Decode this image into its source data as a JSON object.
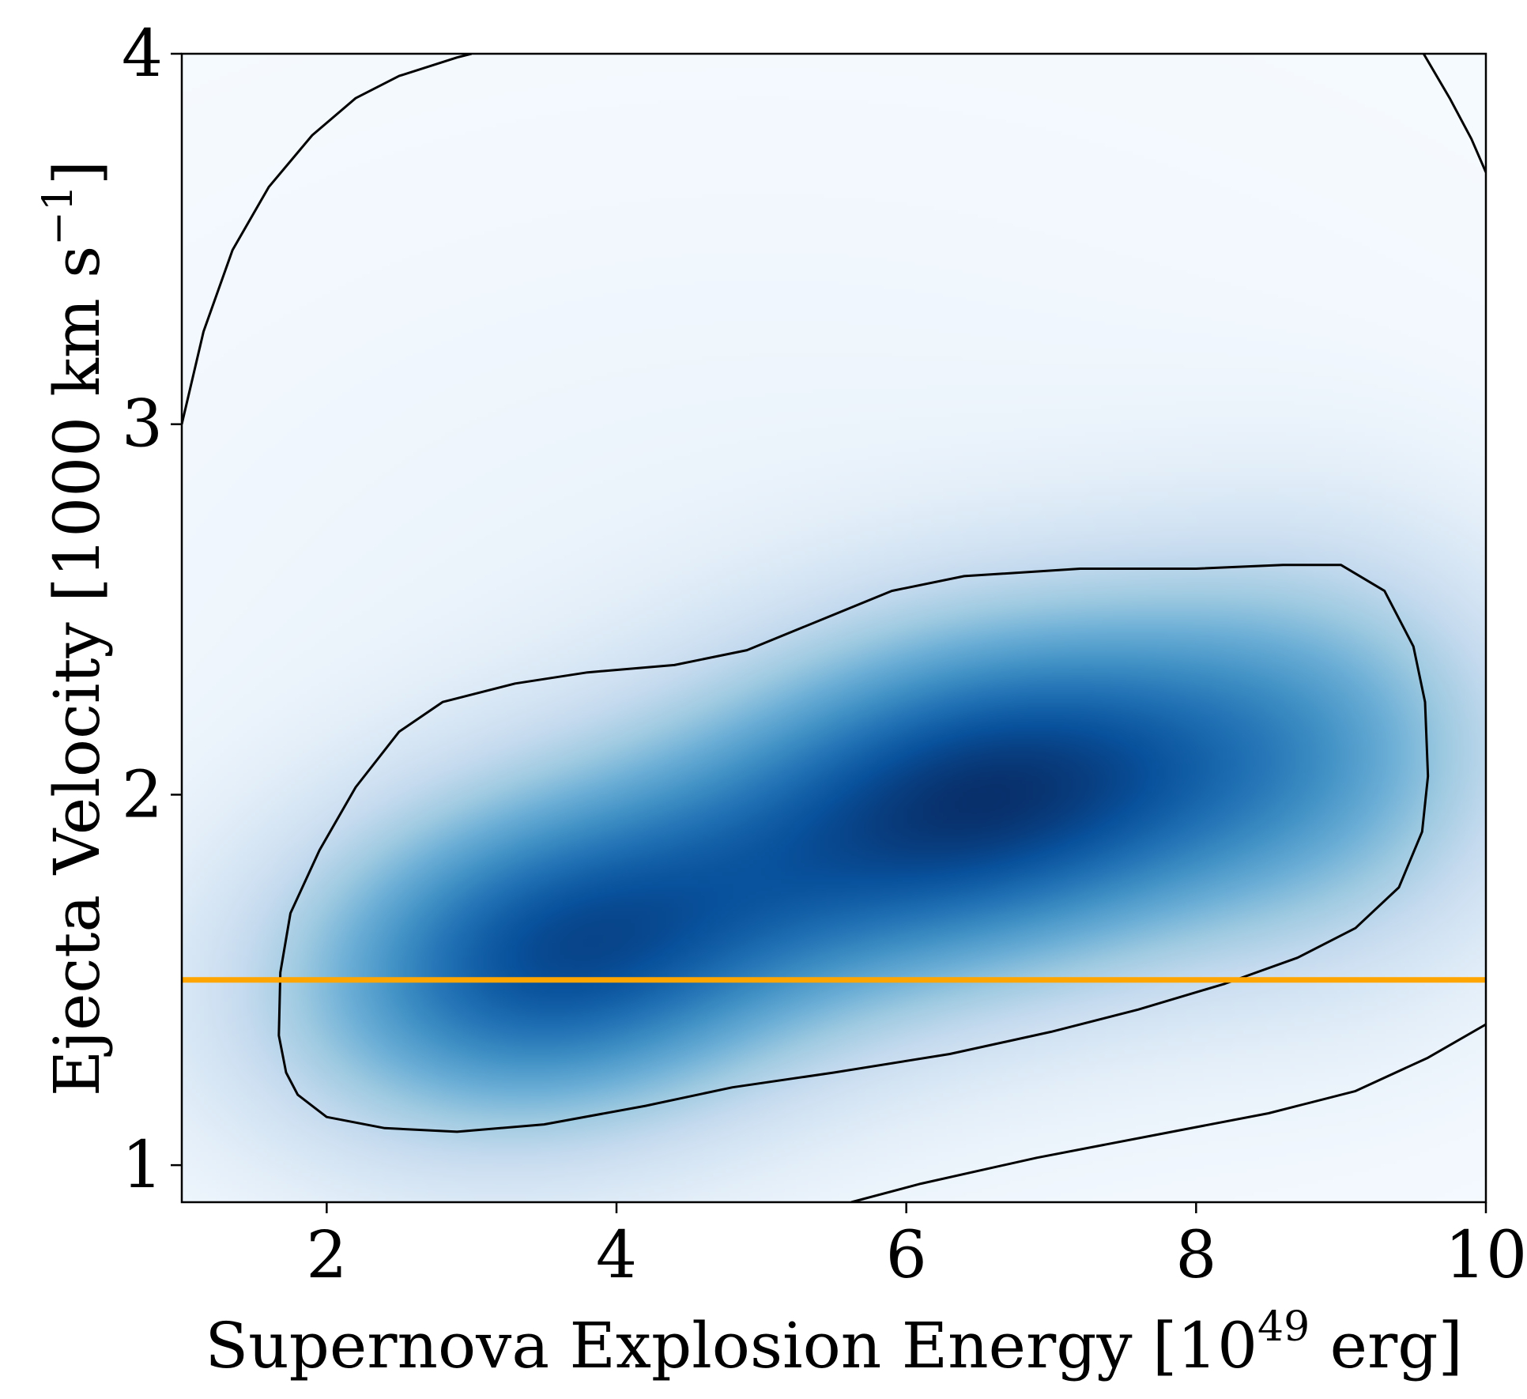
{
  "chart_data": {
    "type": "heatmap",
    "subtype": "2d-kde-density-with-contours",
    "xlabel": {
      "text": "Supernova Explosion Energy [10",
      "sup": "49",
      "suffix": " erg]"
    },
    "ylabel": {
      "text": "Ejecta Velocity [1000 km s",
      "sup": "−1",
      "suffix": "]"
    },
    "xlim": [
      1,
      10
    ],
    "ylim": [
      0.9,
      4
    ],
    "x_ticks": [
      2,
      4,
      6,
      8,
      10
    ],
    "x_tick_labels": [
      "2",
      "4",
      "6",
      "8",
      "10"
    ],
    "y_ticks": [
      1,
      2,
      3,
      4
    ],
    "y_tick_labels": [
      "1",
      "2",
      "3",
      "4"
    ],
    "colormap": {
      "name": "Blues",
      "low": "#f7fbff",
      "high": "#08306b"
    },
    "density_components": [
      {
        "mean": [
          3.5,
          1.55
        ],
        "sigma": [
          1.3,
          0.33
        ],
        "rho": 0.15,
        "weight": 1.0
      },
      {
        "mean": [
          6.6,
          2.0
        ],
        "sigma": [
          1.5,
          0.35
        ],
        "rho": 0.2,
        "weight": 1.15
      },
      {
        "mean": [
          9.0,
          2.1
        ],
        "sigma": [
          1.0,
          0.4
        ],
        "rho": 0.0,
        "weight": 0.4
      },
      {
        "mean": [
          5.0,
          2.2
        ],
        "sigma": [
          4.0,
          1.1
        ],
        "rho": 0.0,
        "weight": 0.08
      }
    ],
    "contours": [
      {
        "name": "inner-contour",
        "closed": true,
        "color": "#000000",
        "points": [
          [
            1.67,
            1.35
          ],
          [
            1.72,
            1.25
          ],
          [
            1.8,
            1.19
          ],
          [
            2.0,
            1.13
          ],
          [
            2.4,
            1.1
          ],
          [
            2.9,
            1.09
          ],
          [
            3.5,
            1.11
          ],
          [
            4.2,
            1.16
          ],
          [
            4.8,
            1.21
          ],
          [
            5.5,
            1.25
          ],
          [
            6.3,
            1.3
          ],
          [
            7.0,
            1.36
          ],
          [
            7.6,
            1.42
          ],
          [
            8.2,
            1.49
          ],
          [
            8.7,
            1.56
          ],
          [
            9.1,
            1.64
          ],
          [
            9.4,
            1.75
          ],
          [
            9.56,
            1.9
          ],
          [
            9.6,
            2.05
          ],
          [
            9.58,
            2.25
          ],
          [
            9.5,
            2.4
          ],
          [
            9.3,
            2.55
          ],
          [
            9.0,
            2.62
          ],
          [
            8.6,
            2.62
          ],
          [
            8.0,
            2.61
          ],
          [
            7.2,
            2.61
          ],
          [
            6.4,
            2.59
          ],
          [
            5.9,
            2.55
          ],
          [
            5.4,
            2.47
          ],
          [
            4.9,
            2.39
          ],
          [
            4.4,
            2.35
          ],
          [
            3.8,
            2.33
          ],
          [
            3.3,
            2.3
          ],
          [
            2.8,
            2.25
          ],
          [
            2.5,
            2.17
          ],
          [
            2.2,
            2.02
          ],
          [
            1.95,
            1.85
          ],
          [
            1.75,
            1.68
          ],
          [
            1.68,
            1.52
          ]
        ]
      },
      {
        "name": "outer-contour-top-left",
        "closed": false,
        "color": "#000000",
        "points": [
          [
            1.0,
            3.0
          ],
          [
            1.15,
            3.25
          ],
          [
            1.35,
            3.47
          ],
          [
            1.6,
            3.64
          ],
          [
            1.9,
            3.78
          ],
          [
            2.2,
            3.88
          ],
          [
            2.5,
            3.94
          ],
          [
            2.9,
            3.99
          ],
          [
            3.0,
            4.0
          ]
        ]
      },
      {
        "name": "outer-contour-top-right",
        "closed": false,
        "color": "#000000",
        "points": [
          [
            9.57,
            4.0
          ],
          [
            9.75,
            3.88
          ],
          [
            9.9,
            3.77
          ],
          [
            10.0,
            3.68
          ]
        ]
      },
      {
        "name": "outer-contour-bottom-right",
        "closed": false,
        "color": "#000000",
        "points": [
          [
            5.62,
            0.9
          ],
          [
            6.1,
            0.95
          ],
          [
            6.9,
            1.02
          ],
          [
            7.7,
            1.08
          ],
          [
            8.5,
            1.14
          ],
          [
            9.1,
            1.2
          ],
          [
            9.6,
            1.29
          ],
          [
            10.0,
            1.38
          ]
        ]
      }
    ],
    "reference_lines": [
      {
        "name": "ejecta-velocity-reference",
        "orientation": "horizontal",
        "y": 1.5,
        "color": "#ffa500"
      }
    ]
  }
}
